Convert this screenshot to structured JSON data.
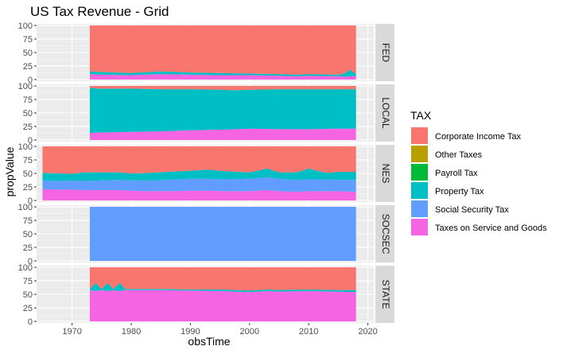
{
  "chart_data": {
    "type": "area",
    "stacked": true,
    "title": "US Tax Revenue - Grid",
    "xlabel": "obsTime",
    "ylabel": "propValue",
    "xlim": [
      1964,
      2021
    ],
    "ylim": [
      -3,
      103
    ],
    "x_ticks": [
      1970,
      1980,
      1990,
      2000,
      2010,
      2020
    ],
    "y_ticks": [
      0,
      25,
      50,
      75,
      100
    ],
    "grid": true,
    "legend_placement": "right",
    "legend_title": "TAX",
    "colors": {
      "Corporate Income Tax": "#F8766D",
      "Other Taxes": "#B79F00",
      "Payroll Tax": "#00BA38",
      "Property Tax": "#00BFC4",
      "Social Security Tax": "#619CFF",
      "Taxes on Service and Goods": "#F564E3"
    },
    "legend": [
      "Corporate Income Tax",
      "Other Taxes",
      "Payroll Tax",
      "Property Tax",
      "Social Security Tax",
      "Taxes on Service and Goods"
    ],
    "panels": [
      {
        "name": "FED",
        "x": [
          1973,
          1975,
          1980,
          1985,
          1990,
          1995,
          2000,
          2005,
          2008,
          2010,
          2015,
          2016,
          2017,
          2018
        ],
        "series": [
          {
            "name": "Taxes on Service and Goods",
            "values": [
              10,
              9,
              8,
              10,
              9,
              8,
              8,
              7,
              6,
              7,
              6,
              5,
              6,
              6
            ]
          },
          {
            "name": "Property Tax",
            "values": [
              5,
              5,
              4,
              5,
              4,
              4,
              3,
              3,
              3,
              3,
              3,
              6,
              12,
              4
            ]
          },
          {
            "name": "Corporate Income Tax",
            "values": [
              85,
              86,
              88,
              85,
              87,
              88,
              89,
              90,
              91,
              90,
              91,
              89,
              82,
              90
            ]
          }
        ]
      },
      {
        "name": "LOCAL",
        "x": [
          1973,
          1975,
          1980,
          1985,
          1990,
          1995,
          1998,
          2000,
          2005,
          2010,
          2015,
          2018
        ],
        "series": [
          {
            "name": "Taxes on Service and Goods",
            "values": [
              13,
              14,
              15,
              16,
              18,
              19,
              20,
              21,
              20,
              20,
              21,
              21
            ]
          },
          {
            "name": "Property Tax",
            "values": [
              83,
              81,
              80,
              78,
              76,
              74,
              72,
              72,
              74,
              74,
              73,
              73
            ]
          },
          {
            "name": "Corporate Income Tax",
            "values": [
              4,
              5,
              5,
              6,
              6,
              7,
              8,
              7,
              6,
              6,
              6,
              6
            ]
          }
        ]
      },
      {
        "name": "NES",
        "x": [
          1965,
          1968,
          1970,
          1972,
          1975,
          1978,
          1980,
          1983,
          1986,
          1990,
          1993,
          1996,
          2000,
          2003,
          2005,
          2008,
          2010,
          2013,
          2015,
          2018
        ],
        "series": [
          {
            "name": "Taxes on Service and Goods",
            "values": [
              21,
              20,
              20,
              19,
              19,
              19,
              18,
              17,
              17,
              18,
              18,
              17,
              17,
              19,
              17,
              16,
              17,
              17,
              17,
              16
            ]
          },
          {
            "name": "Social Security Tax",
            "values": [
              16,
              16,
              17,
              17,
              18,
              19,
              19,
              20,
              21,
              22,
              22,
              22,
              23,
              24,
              23,
              22,
              22,
              22,
              21,
              22
            ]
          },
          {
            "name": "Property Tax",
            "values": [
              14,
              14,
              12,
              16,
              15,
              14,
              13,
              14,
              15,
              15,
              17,
              15,
              12,
              16,
              12,
              14,
              20,
              12,
              15,
              15
            ]
          },
          {
            "name": "Corporate Income Tax",
            "values": [
              49,
              50,
              51,
              48,
              48,
              48,
              50,
              49,
              47,
              45,
              43,
              46,
              48,
              41,
              48,
              48,
              41,
              49,
              47,
              47
            ]
          }
        ]
      },
      {
        "name": "SOCSEC",
        "x": [
          1973,
          2018
        ],
        "series": [
          {
            "name": "Social Security Tax",
            "values": [
              100,
              100
            ]
          }
        ]
      },
      {
        "name": "STATE",
        "x": [
          1973,
          1974,
          1975,
          1976,
          1977,
          1978,
          1979,
          1980,
          1985,
          1990,
          1995,
          2000,
          2003,
          2005,
          2010,
          2015,
          2018
        ],
        "series": [
          {
            "name": "Taxes on Service and Goods",
            "values": [
              58,
              56,
              58,
              56,
              58,
              56,
              58,
              58,
              58,
              57,
              56,
              54,
              56,
              55,
              56,
              55,
              54
            ]
          },
          {
            "name": "Property Tax",
            "values": [
              2,
              15,
              2,
              15,
              2,
              15,
              2,
              2,
              2,
              2,
              3,
              3,
              3,
              3,
              3,
              3,
              4
            ]
          },
          {
            "name": "Corporate Income Tax",
            "values": [
              40,
              29,
              40,
              29,
              40,
              29,
              40,
              40,
              40,
              41,
              41,
              43,
              41,
              42,
              41,
              42,
              42
            ]
          }
        ]
      }
    ]
  }
}
